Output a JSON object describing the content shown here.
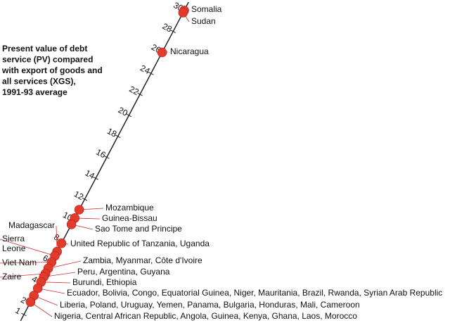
{
  "chart_data": {
    "type": "diagonal-dot",
    "title": [
      "Present value of debt",
      "service (PV) compared",
      "with export of goods and",
      "all services (XGS),",
      "1991-93 average"
    ],
    "xlim": [
      1,
      30
    ],
    "xticks": [
      1,
      2,
      4,
      6,
      8,
      10,
      12,
      14,
      16,
      18,
      20,
      22,
      24,
      26,
      28,
      30
    ],
    "color": "#e23a2c",
    "points": [
      {
        "label": [
          "Somalia"
        ],
        "value": 30
      },
      {
        "label": [
          "Sudan"
        ],
        "value": 29.8
      },
      {
        "label": [
          "Nicaragua"
        ],
        "value": 26
      },
      {
        "label": [
          "Mozambique"
        ],
        "value": 11
      },
      {
        "label": [
          "Guinea-Bissau"
        ],
        "value": 10.2
      },
      {
        "label": [
          "Sao Tome and Principe"
        ],
        "value": 9.6
      },
      {
        "label": [
          "United Republic of Tanzania, Uganda"
        ],
        "value": 7.8
      },
      {
        "label": [
          "Madagascar"
        ],
        "value": 7
      },
      {
        "label": [
          "Sierra",
          "Leone"
        ],
        "value": 6.6
      },
      {
        "label": [
          "Viet Nam"
        ],
        "value": 6
      },
      {
        "label": [
          "Zambia, Myanmar, Côte d'Ivoire"
        ],
        "value": 5.4
      },
      {
        "label": [
          "Zaire"
        ],
        "value": 4.9
      },
      {
        "label": [
          "Peru, Argentina, Guyana"
        ],
        "value": 4.6
      },
      {
        "label": [
          "Burundi, Ethiopia"
        ],
        "value": 4.1
      },
      {
        "label": [
          "Ecuador, Bolivia, Congo, Equatorial Guinea, Niger, Mauritania, Brazil, Rwanda, Syrian Arab Republic"
        ],
        "value": 3.5
      },
      {
        "label": [
          "Liberia, Poland, Uruguay, Yemen, Panama, Bulgaria, Honduras, Mali, Cameroon"
        ],
        "value": 2.8
      },
      {
        "label": [
          "Nigeria, Central African Republic, Angola, Guinea, Kenya, Ghana, Laos, Morocco"
        ],
        "value": 2.2
      }
    ]
  }
}
